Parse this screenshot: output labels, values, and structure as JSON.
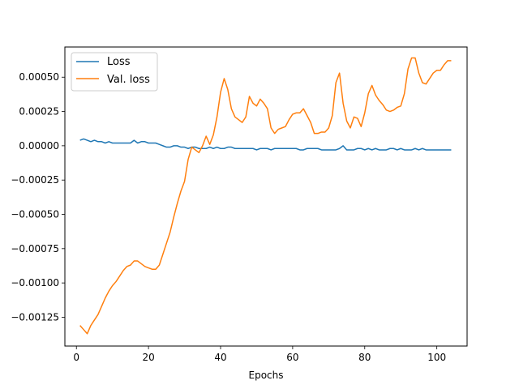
{
  "chart_data": {
    "type": "line",
    "title": "",
    "xlabel": "Epochs",
    "ylabel": "",
    "xlim": [
      -3.2,
      108.4
    ],
    "ylim": [
      -0.00146,
      0.00072
    ],
    "xticks": [
      0,
      20,
      40,
      60,
      80,
      100
    ],
    "xtick_labels": [
      "0",
      "20",
      "40",
      "60",
      "80",
      "100"
    ],
    "yticks": [
      -0.00125,
      -0.001,
      -0.00075,
      -0.0005,
      -0.00025,
      0,
      0.00025,
      0.0005
    ],
    "ytick_labels": [
      "−0.00125",
      "−0.00100",
      "−0.00075",
      "−0.00050",
      "−0.00025",
      "0.00000",
      "0.00025",
      "0.00050"
    ],
    "grid": false,
    "legend_position": "upper-left",
    "x": [
      1,
      2,
      3,
      4,
      5,
      6,
      7,
      8,
      9,
      10,
      11,
      12,
      13,
      14,
      15,
      16,
      17,
      18,
      19,
      20,
      21,
      22,
      23,
      24,
      25,
      26,
      27,
      28,
      29,
      30,
      31,
      32,
      33,
      34,
      35,
      36,
      37,
      38,
      39,
      40,
      41,
      42,
      43,
      44,
      45,
      46,
      47,
      48,
      49,
      50,
      51,
      52,
      53,
      54,
      55,
      56,
      57,
      58,
      59,
      60,
      61,
      62,
      63,
      64,
      65,
      66,
      67,
      68,
      69,
      70,
      71,
      72,
      73,
      74,
      75,
      76,
      77,
      78,
      79,
      80,
      81,
      82,
      83,
      84,
      85,
      86,
      87,
      88,
      89,
      90,
      91,
      92,
      93,
      94,
      95,
      96,
      97,
      98,
      99,
      100,
      101,
      102,
      103,
      104
    ],
    "series": [
      {
        "name": "Loss",
        "color": "#1f77b4",
        "values": [
          4e-05,
          5e-05,
          4e-05,
          3e-05,
          4e-05,
          3e-05,
          3e-05,
          2e-05,
          3e-05,
          2e-05,
          2e-05,
          2e-05,
          2e-05,
          2e-05,
          2e-05,
          4e-05,
          2e-05,
          3e-05,
          3e-05,
          2e-05,
          2e-05,
          2e-05,
          1e-05,
          0.0,
          -1e-05,
          -1e-05,
          0.0,
          0.0,
          -1e-05,
          -1e-05,
          -2e-05,
          -1e-05,
          -1e-05,
          -2e-05,
          -2e-05,
          -2e-05,
          -1e-05,
          -2e-05,
          -1e-05,
          -2e-05,
          -2e-05,
          -1e-05,
          -1e-05,
          -2e-05,
          -2e-05,
          -2e-05,
          -2e-05,
          -2e-05,
          -2e-05,
          -3e-05,
          -2e-05,
          -2e-05,
          -2e-05,
          -3e-05,
          -2e-05,
          -2e-05,
          -2e-05,
          -2e-05,
          -2e-05,
          -2e-05,
          -2e-05,
          -3e-05,
          -3e-05,
          -2e-05,
          -2e-05,
          -2e-05,
          -2e-05,
          -3e-05,
          -3e-05,
          -3e-05,
          -3e-05,
          -3e-05,
          -2e-05,
          0.0,
          -3e-05,
          -3e-05,
          -3e-05,
          -2e-05,
          -2e-05,
          -3e-05,
          -2e-05,
          -3e-05,
          -2e-05,
          -3e-05,
          -3e-05,
          -3e-05,
          -2e-05,
          -2e-05,
          -3e-05,
          -2e-05,
          -3e-05,
          -3e-05,
          -3e-05,
          -2e-05,
          -3e-05,
          -2e-05,
          -3e-05,
          -3e-05,
          -3e-05,
          -3e-05,
          -3e-05,
          -3e-05,
          -3e-05,
          -3e-05
        ]
      },
      {
        "name": "Val. loss",
        "color": "#ff7f0e",
        "values": [
          -0.00131,
          -0.00134,
          -0.00137,
          -0.00131,
          -0.00127,
          -0.00123,
          -0.00117,
          -0.00111,
          -0.00106,
          -0.00102,
          -0.00099,
          -0.00095,
          -0.00091,
          -0.00088,
          -0.00087,
          -0.00084,
          -0.00084,
          -0.00086,
          -0.00088,
          -0.00089,
          -0.0009,
          -0.0009,
          -0.00087,
          -0.00079,
          -0.00071,
          -0.00063,
          -0.00052,
          -0.00042,
          -0.00033,
          -0.00026,
          -0.0001,
          -1e-05,
          -3e-05,
          -5e-05,
          0.0,
          7e-05,
          1e-05,
          8e-05,
          0.00021,
          0.00039,
          0.00049,
          0.00041,
          0.00027,
          0.00021,
          0.00019,
          0.00017,
          0.00021,
          0.00036,
          0.00031,
          0.00029,
          0.00034,
          0.00031,
          0.00027,
          0.00013,
          9e-05,
          0.00012,
          0.00013,
          0.00014,
          0.00019,
          0.00023,
          0.00024,
          0.00024,
          0.00027,
          0.00022,
          0.00017,
          9e-05,
          9e-05,
          0.0001,
          0.0001,
          0.00013,
          0.00022,
          0.00046,
          0.00053,
          0.00031,
          0.00018,
          0.00013,
          0.00021,
          0.0002,
          0.00014,
          0.00024,
          0.00038,
          0.00044,
          0.00037,
          0.00033,
          0.0003,
          0.00026,
          0.00025,
          0.00026,
          0.00028,
          0.00029,
          0.00038,
          0.00056,
          0.00064,
          0.00064,
          0.00053,
          0.00046,
          0.00045,
          0.00049,
          0.00053,
          0.00055,
          0.00055,
          0.00059,
          0.00062,
          0.00062
        ]
      }
    ]
  }
}
